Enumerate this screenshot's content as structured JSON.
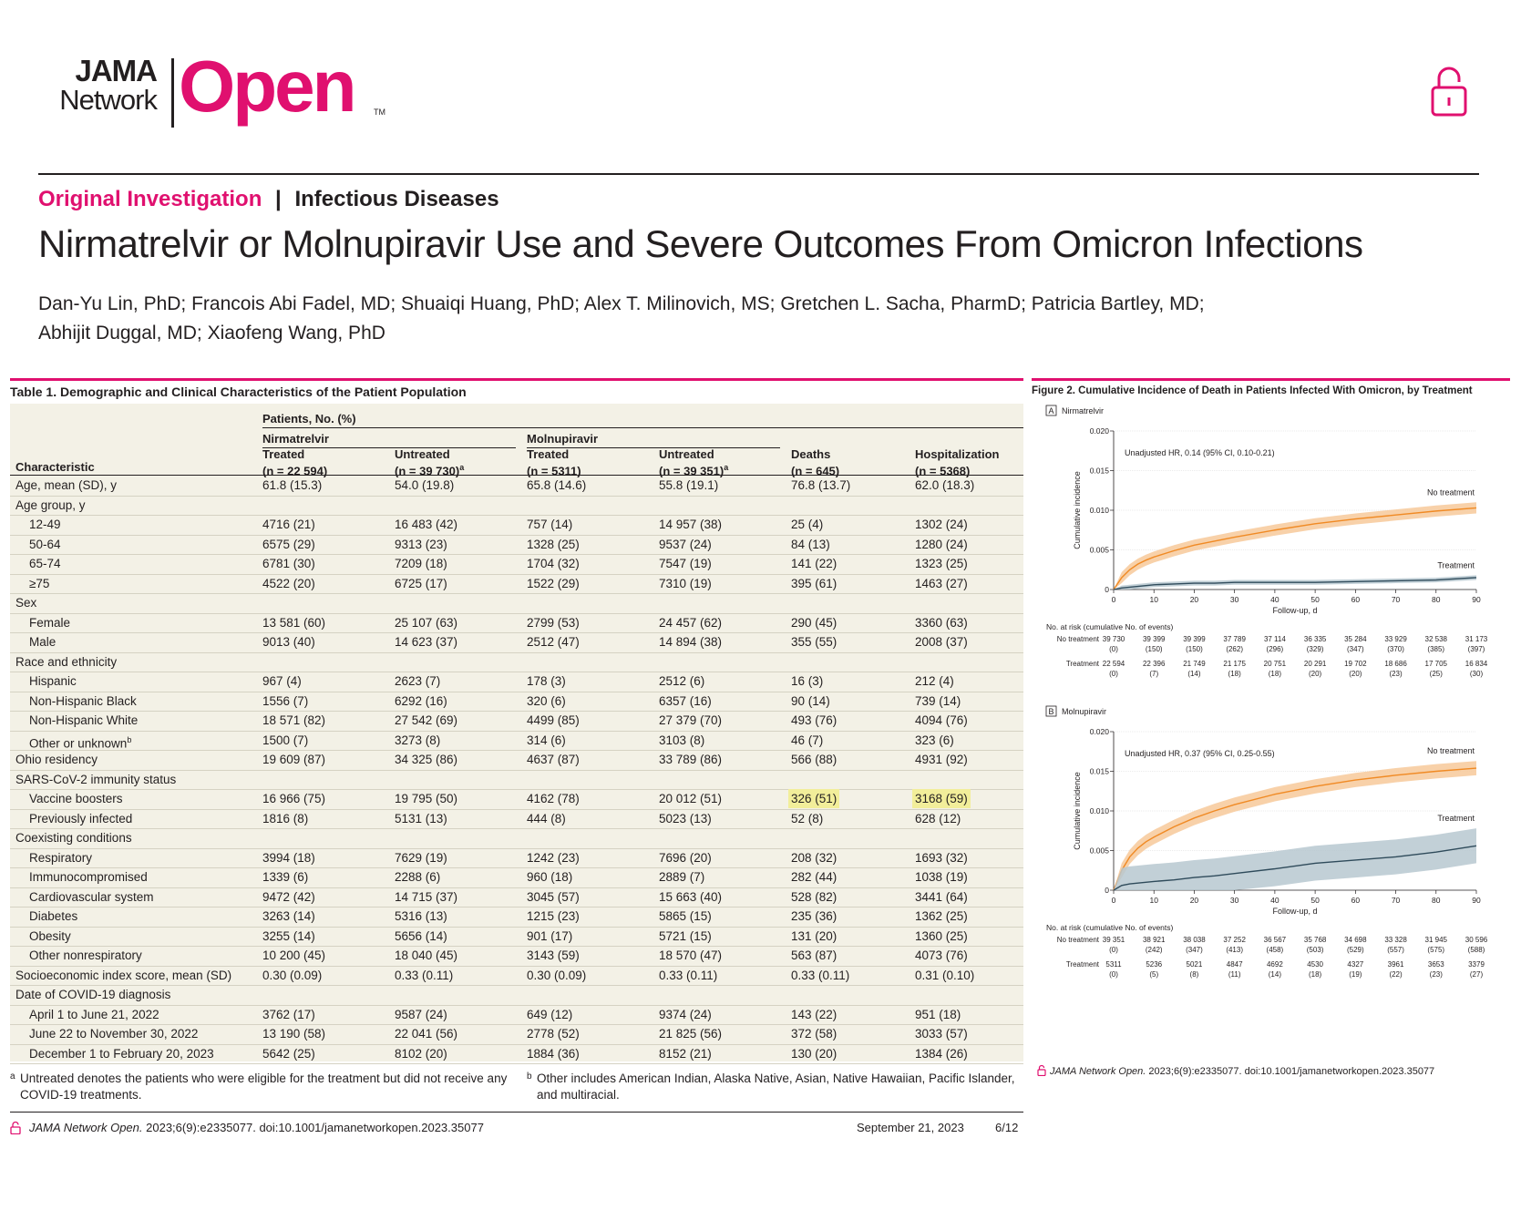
{
  "header": {
    "logo_jama": "JAMA",
    "logo_network": "Network",
    "logo_open": "Open",
    "logo_tm": "TM",
    "category_pink": "Original Investigation",
    "category_sep": "|",
    "category_topic": "Infectious Diseases",
    "title": "Nirmatrelvir or Molnupiravir Use and Severe Outcomes From Omicron Infections",
    "authors_line1": "Dan-Yu Lin, PhD; Francois Abi Fadel, MD; Shuaiqi Huang, PhD; Alex T. Milinovich, MS; Gretchen L. Sacha, PharmD; Patricia Bartley, MD;",
    "authors_line2": "Abhijit Duggal, MD; Xiaofeng Wang, PhD",
    "accent_color": "#e0106f"
  },
  "table": {
    "caption": "Table 1. Demographic and Clinical Characteristics of the Patient Population",
    "patients_header": "Patients, No. (%)",
    "group_nirmatrelvir": "Nirmatrelvir",
    "group_molnupiravir": "Molnupiravir",
    "col_characteristic": "Characteristic",
    "columns": [
      {
        "label": "Treated",
        "n": "(n = 22 594)",
        "sup": ""
      },
      {
        "label": "Untreated",
        "n": "(n = 39 730)",
        "sup": "a"
      },
      {
        "label": "Treated",
        "n": "(n = 5311)",
        "sup": ""
      },
      {
        "label": "Untreated",
        "n": "(n = 39 351)",
        "sup": "a"
      },
      {
        "label": "Deaths",
        "n": "(n = 645)",
        "sup": ""
      },
      {
        "label": "Hospitalization",
        "n": "(n = 5368)",
        "sup": ""
      }
    ],
    "rows": [
      {
        "label": "Age, mean (SD), y",
        "indent": false,
        "values": [
          "61.8 (15.3)",
          "54.0 (19.8)",
          "65.8 (14.6)",
          "55.8 (19.1)",
          "76.8 (13.7)",
          "62.0 (18.3)"
        ]
      },
      {
        "label": "Age group, y",
        "indent": false,
        "values": []
      },
      {
        "label": "12-49",
        "indent": true,
        "values": [
          "4716 (21)",
          "16 483 (42)",
          "757 (14)",
          "14 957 (38)",
          "25 (4)",
          "1302 (24)"
        ]
      },
      {
        "label": "50-64",
        "indent": true,
        "values": [
          "6575 (29)",
          "9313 (23)",
          "1328 (25)",
          "9537 (24)",
          "84 (13)",
          "1280 (24)"
        ]
      },
      {
        "label": "65-74",
        "indent": true,
        "values": [
          "6781 (30)",
          "7209 (18)",
          "1704 (32)",
          "7547 (19)",
          "141 (22)",
          "1323 (25)"
        ]
      },
      {
        "label": "≥75",
        "indent": true,
        "values": [
          "4522 (20)",
          "6725 (17)",
          "1522 (29)",
          "7310 (19)",
          "395 (61)",
          "1463 (27)"
        ]
      },
      {
        "label": "Sex",
        "indent": false,
        "values": []
      },
      {
        "label": "Female",
        "indent": true,
        "values": [
          "13 581 (60)",
          "25 107 (63)",
          "2799 (53)",
          "24 457 (62)",
          "290 (45)",
          "3360 (63)"
        ]
      },
      {
        "label": "Male",
        "indent": true,
        "values": [
          "9013 (40)",
          "14 623 (37)",
          "2512 (47)",
          "14 894 (38)",
          "355 (55)",
          "2008 (37)"
        ]
      },
      {
        "label": "Race and ethnicity",
        "indent": false,
        "values": []
      },
      {
        "label": "Hispanic",
        "indent": true,
        "values": [
          "967 (4)",
          "2623 (7)",
          "178 (3)",
          "2512 (6)",
          "16 (3)",
          "212 (4)"
        ]
      },
      {
        "label": "Non-Hispanic Black",
        "indent": true,
        "values": [
          "1556 (7)",
          "6292 (16)",
          "320 (6)",
          "6357 (16)",
          "90 (14)",
          "739 (14)"
        ]
      },
      {
        "label": "Non-Hispanic White",
        "indent": true,
        "values": [
          "18 571 (82)",
          "27 542 (69)",
          "4499 (85)",
          "27 379 (70)",
          "493 (76)",
          "4094 (76)"
        ]
      },
      {
        "label": "Other or unknown",
        "sup": "b",
        "indent": true,
        "values": [
          "1500 (7)",
          "3273 (8)",
          "314 (6)",
          "3103 (8)",
          "46 (7)",
          "323 (6)"
        ]
      },
      {
        "label": "Ohio residency",
        "indent": false,
        "values": [
          "19 609 (87)",
          "34 325 (86)",
          "4637 (87)",
          "33 789 (86)",
          "566 (88)",
          "4931 (92)"
        ]
      },
      {
        "label": "SARS-CoV-2 immunity status",
        "indent": false,
        "values": []
      },
      {
        "label": "Vaccine boosters",
        "indent": true,
        "highlight": [
          4,
          5
        ],
        "values": [
          "16 966 (75)",
          "19 795 (50)",
          "4162 (78)",
          "20 012 (51)",
          "326 (51)",
          "3168 (59)"
        ]
      },
      {
        "label": "Previously infected",
        "indent": true,
        "values": [
          "1816 (8)",
          "5131 (13)",
          "444 (8)",
          "5023 (13)",
          "52 (8)",
          "628 (12)"
        ]
      },
      {
        "label": "Coexisting conditions",
        "indent": false,
        "values": []
      },
      {
        "label": "Respiratory",
        "indent": true,
        "values": [
          "3994 (18)",
          "7629 (19)",
          "1242 (23)",
          "7696 (20)",
          "208 (32)",
          "1693 (32)"
        ]
      },
      {
        "label": "Immunocompromised",
        "indent": true,
        "values": [
          "1339 (6)",
          "2288 (6)",
          "960 (18)",
          "2889 (7)",
          "282 (44)",
          "1038 (19)"
        ]
      },
      {
        "label": "Cardiovascular system",
        "indent": true,
        "values": [
          "9472 (42)",
          "14 715 (37)",
          "3045 (57)",
          "15 663 (40)",
          "528 (82)",
          "3441 (64)"
        ]
      },
      {
        "label": "Diabetes",
        "indent": true,
        "values": [
          "3263 (14)",
          "5316 (13)",
          "1215 (23)",
          "5865 (15)",
          "235 (36)",
          "1362 (25)"
        ]
      },
      {
        "label": "Obesity",
        "indent": true,
        "values": [
          "3255 (14)",
          "5656 (14)",
          "901 (17)",
          "5721 (15)",
          "131 (20)",
          "1360 (25)"
        ]
      },
      {
        "label": "Other nonrespiratory",
        "indent": true,
        "values": [
          "10 200 (45)",
          "18 040 (45)",
          "3143 (59)",
          "18 570 (47)",
          "563 (87)",
          "4073 (76)"
        ]
      },
      {
        "label": "Socioeconomic index score, mean (SD)",
        "indent": false,
        "values": [
          "0.30 (0.09)",
          "0.33 (0.11)",
          "0.30 (0.09)",
          "0.33 (0.11)",
          "0.33 (0.11)",
          "0.31 (0.10)"
        ]
      },
      {
        "label": "Date of COVID-19 diagnosis",
        "indent": false,
        "values": []
      },
      {
        "label": "April 1 to June 21, 2022",
        "indent": true,
        "values": [
          "3762 (17)",
          "9587 (24)",
          "649 (12)",
          "9374 (24)",
          "143 (22)",
          "951 (18)"
        ]
      },
      {
        "label": "June 22 to November 30, 2022",
        "indent": true,
        "values": [
          "13 190 (58)",
          "22 041 (56)",
          "2778 (52)",
          "21 825 (56)",
          "372 (58)",
          "3033 (57)"
        ]
      },
      {
        "label": "December 1 to February 20, 2023",
        "indent": true,
        "values": [
          "5642 (25)",
          "8102 (20)",
          "1884 (36)",
          "8152 (21)",
          "130 (20)",
          "1384 (26)"
        ]
      }
    ],
    "footnote_a_mark": "a",
    "footnote_a": "Untreated denotes the patients who were eligible for the treatment but did not receive any COVID-19 treatments.",
    "footnote_b_mark": "b",
    "footnote_b": "Other includes American Indian, Alaska Native, Asian, Native Hawaiian, Pacific Islander, and multiracial."
  },
  "figure": {
    "caption": "Figure 2. Cumulative Incidence of Death in Patients Infected With Omicron, by Treatment",
    "citation_journal": "JAMA Network Open.",
    "citation_rest": " 2023;6(9):e2335077. doi:10.1001/jamanetworkopen.2023.35077",
    "at_risk_title": "No. at risk (cumulative No. of events)",
    "colors": {
      "no_treatment": "#f08a24",
      "no_treatment_band": "#f7c99a",
      "treatment": "#2f4b5b",
      "treatment_band": "#b7c8d0"
    }
  },
  "chart_data": [
    {
      "type": "line",
      "panel_letter": "A",
      "panel_title": "Nirmatrelvir",
      "annotation": "Unadjusted HR, 0.14 (95% CI, 0.10-0.21)",
      "xlabel": "Follow-up, d",
      "ylabel": "Cumulative incidence",
      "xlim": [
        0,
        90
      ],
      "ylim": [
        0,
        0.02
      ],
      "xticks": [
        "0",
        "10",
        "20",
        "30",
        "40",
        "50",
        "60",
        "70",
        "80",
        "90"
      ],
      "yticks": [
        "0",
        "0.005",
        "0.010",
        "0.015",
        "0.020"
      ],
      "x": [
        0,
        2,
        4,
        6,
        8,
        10,
        15,
        20,
        25,
        30,
        40,
        50,
        60,
        70,
        80,
        90
      ],
      "series": [
        {
          "name": "No treatment",
          "values": [
            0,
            0.0015,
            0.0025,
            0.0032,
            0.0037,
            0.0041,
            0.0049,
            0.0056,
            0.0061,
            0.0066,
            0.0075,
            0.0083,
            0.0089,
            0.0094,
            0.0099,
            0.0103
          ],
          "band": 0.0007
        },
        {
          "name": "Treatment",
          "values": [
            0,
            0.0002,
            0.0003,
            0.0004,
            0.0005,
            0.0006,
            0.0007,
            0.0008,
            0.0008,
            0.0009,
            0.0009,
            0.0009,
            0.001,
            0.0011,
            0.0012,
            0.0015
          ],
          "band": 0.0003
        }
      ],
      "at_risk": {
        "No treatment": [
          "39 730",
          "39 399",
          "39 399",
          "37 789",
          "37 114",
          "36 335",
          "35 284",
          "33 929",
          "32 538",
          "31 173"
        ],
        "No treatment events": [
          "(0)",
          "(150)",
          "(150)",
          "(262)",
          "(296)",
          "(329)",
          "(347)",
          "(370)",
          "(385)",
          "(397)"
        ],
        "Treatment": [
          "22 594",
          "22 396",
          "21 749",
          "21 175",
          "20 751",
          "20 291",
          "19 702",
          "18 686",
          "17 705",
          "16 834"
        ],
        "Treatment events": [
          "(0)",
          "(7)",
          "(14)",
          "(18)",
          "(18)",
          "(20)",
          "(20)",
          "(23)",
          "(25)",
          "(30)"
        ]
      }
    },
    {
      "type": "line",
      "panel_letter": "B",
      "panel_title": "Molnupiravir",
      "annotation": "Unadjusted HR, 0.37 (95% CI, 0.25-0.55)",
      "xlabel": "Follow-up, d",
      "ylabel": "Cumulative incidence",
      "xlim": [
        0,
        90
      ],
      "ylim": [
        0,
        0.02
      ],
      "xticks": [
        "0",
        "10",
        "20",
        "30",
        "40",
        "50",
        "60",
        "70",
        "80",
        "90"
      ],
      "yticks": [
        "0",
        "0.005",
        "0.010",
        "0.015",
        "0.020"
      ],
      "x": [
        0,
        2,
        4,
        6,
        8,
        10,
        15,
        20,
        25,
        30,
        40,
        50,
        60,
        70,
        80,
        90
      ],
      "series": [
        {
          "name": "No treatment",
          "values": [
            0,
            0.0025,
            0.0042,
            0.0053,
            0.0061,
            0.0067,
            0.008,
            0.0091,
            0.01,
            0.0108,
            0.0121,
            0.0131,
            0.0139,
            0.0145,
            0.015,
            0.0154
          ],
          "band": 0.0009
        },
        {
          "name": "Treatment",
          "values": [
            0,
            0.0006,
            0.0008,
            0.0009,
            0.001,
            0.0011,
            0.0013,
            0.0016,
            0.0018,
            0.0021,
            0.0027,
            0.0034,
            0.0038,
            0.0042,
            0.0048,
            0.0056
          ],
          "band": 0.0022
        }
      ],
      "at_risk": {
        "No treatment": [
          "39 351",
          "38 921",
          "38 038",
          "37 252",
          "36 567",
          "35 768",
          "34 698",
          "33 328",
          "31 945",
          "30 596"
        ],
        "No treatment events": [
          "(0)",
          "(242)",
          "(347)",
          "(413)",
          "(458)",
          "(503)",
          "(529)",
          "(557)",
          "(575)",
          "(588)"
        ],
        "Treatment": [
          "5311",
          "5236",
          "5021",
          "4847",
          "4692",
          "4530",
          "4327",
          "3961",
          "3653",
          "3379"
        ],
        "Treatment events": [
          "(0)",
          "(5)",
          "(8)",
          "(11)",
          "(14)",
          "(18)",
          "(19)",
          "(22)",
          "(23)",
          "(27)"
        ]
      }
    }
  ],
  "footer": {
    "citation_journal": "JAMA Network Open.",
    "citation_rest": " 2023;6(9):e2335077. doi:10.1001/jamanetworkopen.2023.35077",
    "date": "September 21, 2023",
    "page": "6/12"
  }
}
